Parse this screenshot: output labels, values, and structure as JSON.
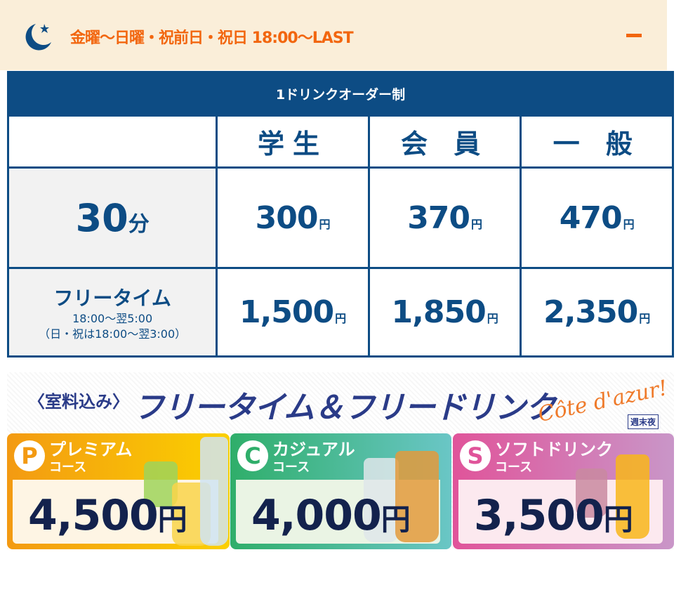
{
  "header": {
    "icon": "moon-star-icon",
    "title": "金曜〜日曜・祝前日・祝日 18:00〜LAST",
    "toggle": "collapse-minus-icon"
  },
  "table": {
    "caption": "1ドリンクオーダー制",
    "columns": [
      "学生",
      "会 員",
      "一 般"
    ],
    "rows": [
      {
        "label": "30",
        "label_unit": "分",
        "prices": [
          "300",
          "370",
          "470"
        ]
      },
      {
        "label": "フリータイム",
        "sub1": "18:00〜翌5:00",
        "sub2": "（日・祝は18:00〜翌3:00）",
        "prices": [
          "1,500",
          "1,850",
          "2,350"
        ]
      }
    ],
    "yen": "円"
  },
  "banner": {
    "prefix": "〈室料込み〉",
    "title": "フリータイム＆フリードリンク",
    "logo": "Côte d'azur!",
    "tag": "週末夜",
    "courses": [
      {
        "badge": "P",
        "name": "プレミアム",
        "sub": "コース",
        "price": "4,500",
        "yen": "円",
        "color": "#f39a12"
      },
      {
        "badge": "C",
        "name": "カジュアル",
        "sub": "コース",
        "price": "4,000",
        "yen": "円",
        "color": "#2fae6a"
      },
      {
        "badge": "S",
        "name": "ソフトドリンク",
        "sub": "コース",
        "price": "3,500",
        "yen": "円",
        "color": "#e0549a"
      }
    ]
  }
}
